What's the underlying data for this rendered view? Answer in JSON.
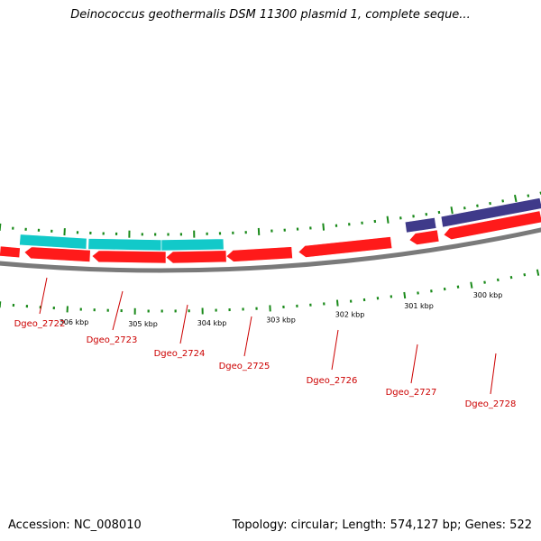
{
  "title": "Deinococcus geothermalis DSM 11300 plasmid 1, complete seque...",
  "footer": {
    "accession": "Accession: NC_008010",
    "summary": "Topology: circular; Length: 574,127 bp; Genes: 522"
  },
  "colors": {
    "backbone": "#7a7a7a",
    "forward_gene": "#ff1a1a",
    "reverse_gene_cyan": "#12c9c9",
    "reverse_gene_navy": "#3f3a8a",
    "tick": "#1a8a1a",
    "label": "#cc0000"
  },
  "kbp_labels": [
    "306 kbp",
    "305 kbp",
    "304 kbp",
    "303 kbp",
    "302 kbp",
    "301 kbp",
    "300 kbp"
  ],
  "gene_labels": [
    "Dgeo_2722",
    "Dgeo_2723",
    "Dgeo_2724",
    "Dgeo_2725",
    "Dgeo_2726",
    "Dgeo_2727",
    "Dgeo_2728"
  ]
}
